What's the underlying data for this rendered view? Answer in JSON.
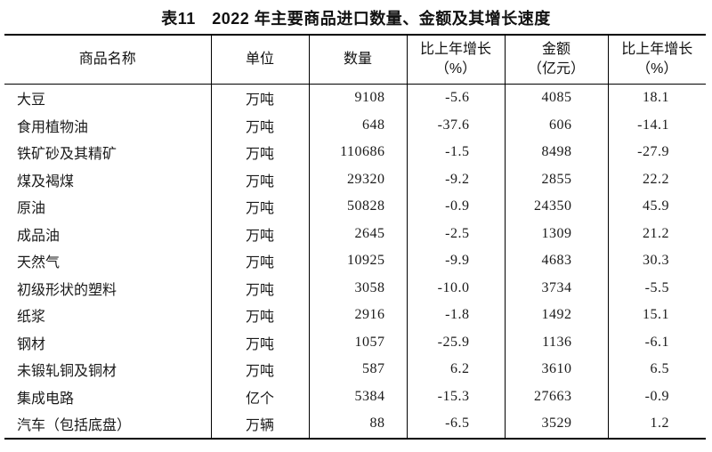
{
  "page": {
    "title": "表11　2022 年主要商品进口数量、金额及其增长速度"
  },
  "table": {
    "headers": {
      "name": "商品名称",
      "unit": "单位",
      "quantity": "数量",
      "quantity_growth_line1": "比上年增长",
      "quantity_growth_line2": "（%）",
      "value_line1": "金额",
      "value_line2": "（亿元）",
      "value_growth_line1": "比上年增长",
      "value_growth_line2": "（%）"
    },
    "rows": [
      {
        "name": "大豆",
        "unit": "万吨",
        "quantity": "9108",
        "qty_growth": "-5.6",
        "value": "4085",
        "val_growth": "18.1"
      },
      {
        "name": "食用植物油",
        "unit": "万吨",
        "quantity": "648",
        "qty_growth": "-37.6",
        "value": "606",
        "val_growth": "-14.1"
      },
      {
        "name": "铁矿砂及其精矿",
        "unit": "万吨",
        "quantity": "110686",
        "qty_growth": "-1.5",
        "value": "8498",
        "val_growth": "-27.9"
      },
      {
        "name": "煤及褐煤",
        "unit": "万吨",
        "quantity": "29320",
        "qty_growth": "-9.2",
        "value": "2855",
        "val_growth": "22.2"
      },
      {
        "name": "原油",
        "unit": "万吨",
        "quantity": "50828",
        "qty_growth": "-0.9",
        "value": "24350",
        "val_growth": "45.9"
      },
      {
        "name": "成品油",
        "unit": "万吨",
        "quantity": "2645",
        "qty_growth": "-2.5",
        "value": "1309",
        "val_growth": "21.2"
      },
      {
        "name": "天然气",
        "unit": "万吨",
        "quantity": "10925",
        "qty_growth": "-9.9",
        "value": "4683",
        "val_growth": "30.3"
      },
      {
        "name": "初级形状的塑料",
        "unit": "万吨",
        "quantity": "3058",
        "qty_growth": "-10.0",
        "value": "3734",
        "val_growth": "-5.5"
      },
      {
        "name": "纸浆",
        "unit": "万吨",
        "quantity": "2916",
        "qty_growth": "-1.8",
        "value": "1492",
        "val_growth": "15.1"
      },
      {
        "name": "钢材",
        "unit": "万吨",
        "quantity": "1057",
        "qty_growth": "-25.9",
        "value": "1136",
        "val_growth": "-6.1"
      },
      {
        "name": "未锻轧铜及铜材",
        "unit": "万吨",
        "quantity": "587",
        "qty_growth": "6.2",
        "value": "3610",
        "val_growth": "6.5"
      },
      {
        "name": "集成电路",
        "unit": "亿个",
        "quantity": "5384",
        "qty_growth": "-15.3",
        "value": "27663",
        "val_growth": "-0.9"
      },
      {
        "name": "汽车（包括底盘）",
        "unit": "万辆",
        "quantity": "88",
        "qty_growth": "-6.5",
        "value": "3529",
        "val_growth": "1.2"
      }
    ]
  }
}
